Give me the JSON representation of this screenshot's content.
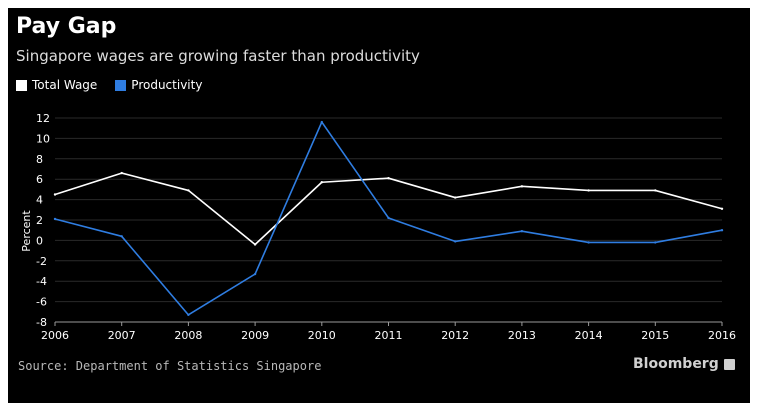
{
  "title": "Pay Gap",
  "subtitle": "Singapore wages are growing faster than productivity",
  "source": "Source: Department of Statistics Singapore",
  "brand": "Bloomberg",
  "colors": {
    "background": "#000000",
    "total_wage": "#ffffff",
    "productivity": "#2f7de1",
    "grid": "#2a2a2a"
  },
  "chart_data": {
    "type": "line",
    "title": "Pay Gap",
    "subtitle": "Singapore wages are growing faster than productivity",
    "xlabel": "",
    "ylabel": "Percent",
    "x": [
      "2006",
      "2007",
      "2008",
      "2009",
      "2010",
      "2011",
      "2012",
      "2013",
      "2014",
      "2015",
      "2016"
    ],
    "ylim": [
      -8,
      12
    ],
    "yticks": [
      "12",
      "10",
      "8",
      "6",
      "4",
      "2",
      "0",
      "-2",
      "-4",
      "-6",
      "-8"
    ],
    "grid": true,
    "legend_position": "top-left",
    "series": [
      {
        "name": "Total Wage",
        "color": "#ffffff",
        "values": [
          4.5,
          6.6,
          4.9,
          -0.4,
          5.7,
          6.1,
          4.2,
          5.3,
          4.9,
          4.9,
          3.1
        ]
      },
      {
        "name": "Productivity",
        "color": "#2f7de1",
        "values": [
          2.1,
          0.4,
          -7.3,
          -3.3,
          11.6,
          2.2,
          -0.1,
          0.9,
          -0.2,
          -0.2,
          1.0
        ]
      }
    ]
  }
}
